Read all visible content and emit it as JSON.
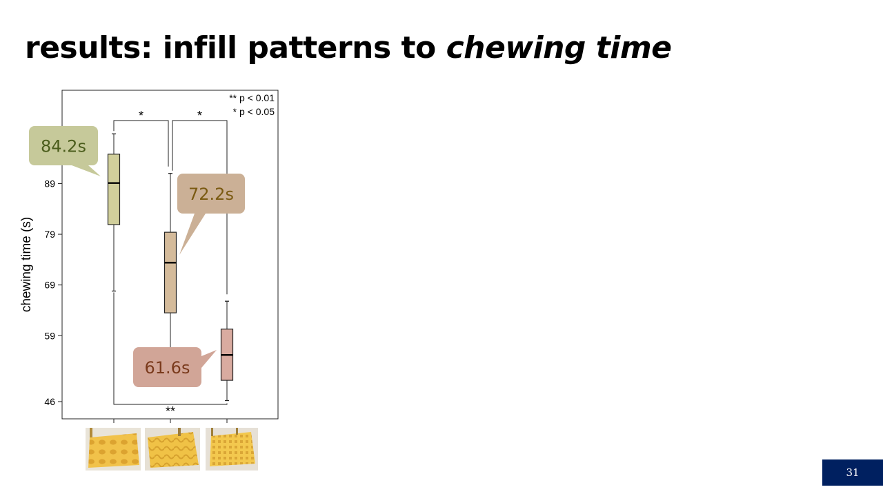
{
  "slide": {
    "title_prefix": "results: infill patterns to ",
    "title_emphasis": "chewing time",
    "page_number": "31"
  },
  "chart_data": {
    "type": "box",
    "ylabel": "chewing time (s)",
    "yticks": [
      46,
      59,
      69,
      79,
      89
    ],
    "ylim": [
      42.6,
      107.4
    ],
    "legend": [
      "** p < 0.01",
      "* p < 0.05"
    ],
    "boxes": [
      {
        "name": "",
        "min": 67.8,
        "q1": 80.9,
        "median": 89.1,
        "q3": 94.8,
        "max": 98.8,
        "color": "#d1cf9b",
        "callout": {
          "label": "84.2s",
          "fill": "#c6c99a",
          "text_color": "#4b5d1c"
        }
      },
      {
        "name": "",
        "min": 55.2,
        "q1": 63.5,
        "median": 73.4,
        "q3": 79.4,
        "max": 91.0,
        "color": "#d4bb9b",
        "callout": {
          "label": "72.2s",
          "fill": "#cbb096",
          "text_color": "#7a5a12"
        }
      },
      {
        "name": "",
        "min": 46.2,
        "q1": 50.2,
        "median": 55.2,
        "q3": 60.3,
        "max": 65.8,
        "color": "#d9aba0",
        "callout": {
          "label": "61.6s",
          "fill": "#d1a597",
          "text_color": "#7a3a1c"
        }
      }
    ],
    "significance": [
      {
        "from": 0,
        "to": 1,
        "label": "*",
        "position": "top"
      },
      {
        "from": 1,
        "to": 2,
        "label": "*",
        "position": "top"
      },
      {
        "from": 0,
        "to": 2,
        "label": "**",
        "position": "bottom"
      }
    ]
  }
}
